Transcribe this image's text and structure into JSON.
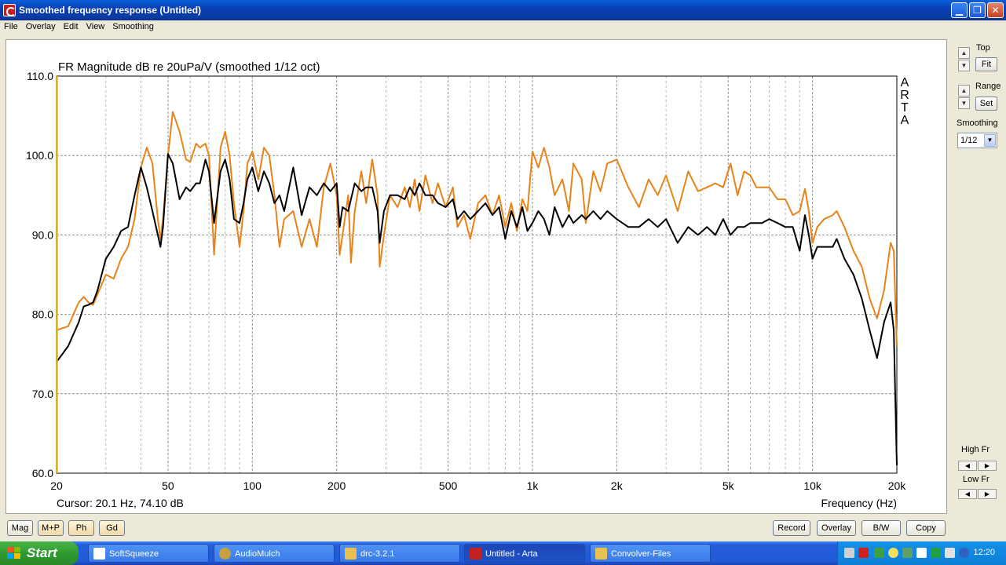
{
  "window": {
    "title": "Smoothed frequency response (Untitled)",
    "min_label": "▁",
    "max_label": "❐",
    "close_label": "✕"
  },
  "menu": [
    "File",
    "Overlay",
    "Edit",
    "View",
    "Smoothing"
  ],
  "side_panel": {
    "top_label": "Top",
    "fit_button": "Fit",
    "range_label": "Range",
    "set_button": "Set",
    "smoothing_label": "Smoothing",
    "smoothing_value": "1/12",
    "high_fr_label": "High Fr",
    "low_fr_label": "Low Fr"
  },
  "bottom_buttons": {
    "mag": "Mag",
    "mp": "M+P",
    "ph": "Ph",
    "gd": "Gd",
    "record": "Record",
    "overlay": "Overlay",
    "bw": "B/W",
    "copy": "Copy"
  },
  "taskbar": {
    "start": "Start",
    "tasks": [
      {
        "label": "SoftSqueeze",
        "color": "#FFFFFF"
      },
      {
        "label": "AudioMulch",
        "color": "#C8A040"
      },
      {
        "label": "drc-3.2.1",
        "color": "#E8C050"
      },
      {
        "label": "Untitled - Arta",
        "color": "#C42020"
      },
      {
        "label": "Convolver-Files",
        "color": "#E8C050"
      }
    ],
    "clock": "12:20"
  },
  "chart_data": {
    "type": "line",
    "title": "FR Magnitude dB re 20uPa/V (smoothed 1/12 oct)",
    "watermark": [
      "A",
      "R",
      "T",
      "A"
    ],
    "xlabel": "Frequency (Hz)",
    "ylabel": "",
    "xscale": "log",
    "xlim": [
      20,
      20000
    ],
    "ylim": [
      60,
      110
    ],
    "x_ticks": [
      "20",
      "50",
      "100",
      "200",
      "500",
      "1k",
      "2k",
      "5k",
      "10k",
      "20k"
    ],
    "x_tick_values": [
      20,
      50,
      100,
      200,
      500,
      1000,
      2000,
      5000,
      10000,
      20000
    ],
    "y_ticks": [
      "110.0",
      "100.0",
      "90.0",
      "80.0",
      "70.0",
      "60.0"
    ],
    "y_tick_values": [
      110,
      100,
      90,
      80,
      70,
      60
    ],
    "grid": true,
    "cursor_text": "Cursor: 20.1 Hz, 74.10 dB",
    "cursor_x": 20.1,
    "series": [
      {
        "color": "#E8821A",
        "points": [
          [
            20,
            78
          ],
          [
            22,
            78.5
          ],
          [
            24,
            81.5
          ],
          [
            25,
            82.2
          ],
          [
            26,
            81.5
          ],
          [
            27,
            81.2
          ],
          [
            28,
            82.5
          ],
          [
            30,
            85
          ],
          [
            32,
            84.5
          ],
          [
            34,
            87
          ],
          [
            36,
            88.5
          ],
          [
            38,
            92
          ],
          [
            40,
            98.5
          ],
          [
            42,
            101
          ],
          [
            44,
            99
          ],
          [
            46,
            92
          ],
          [
            47,
            89.5
          ],
          [
            48,
            92
          ],
          [
            50,
            100
          ],
          [
            52,
            105.5
          ],
          [
            55,
            103
          ],
          [
            58,
            99.5
          ],
          [
            60,
            99.2
          ],
          [
            63,
            101.5
          ],
          [
            65,
            101
          ],
          [
            68,
            101.5
          ],
          [
            70,
            100
          ],
          [
            73,
            87.5
          ],
          [
            77,
            101
          ],
          [
            80,
            103
          ],
          [
            83,
            100
          ],
          [
            86,
            94
          ],
          [
            90,
            88.5
          ],
          [
            93,
            93
          ],
          [
            96,
            99
          ],
          [
            100,
            100.5
          ],
          [
            105,
            97
          ],
          [
            110,
            101
          ],
          [
            115,
            100
          ],
          [
            120,
            95
          ],
          [
            125,
            88.5
          ],
          [
            130,
            92
          ],
          [
            140,
            93
          ],
          [
            150,
            88.5
          ],
          [
            160,
            92
          ],
          [
            170,
            88.5
          ],
          [
            180,
            96
          ],
          [
            190,
            99
          ],
          [
            200,
            95
          ],
          [
            205,
            87.5
          ],
          [
            210,
            90
          ],
          [
            220,
            95
          ],
          [
            225,
            86.5
          ],
          [
            232,
            93
          ],
          [
            245,
            98
          ],
          [
            255,
            94
          ],
          [
            268,
            99.5
          ],
          [
            280,
            95
          ],
          [
            285,
            86
          ],
          [
            295,
            90
          ],
          [
            310,
            95
          ],
          [
            330,
            93.5
          ],
          [
            350,
            96
          ],
          [
            365,
            93.5
          ],
          [
            380,
            97
          ],
          [
            395,
            93
          ],
          [
            415,
            97.5
          ],
          [
            440,
            94
          ],
          [
            460,
            96.5
          ],
          [
            490,
            93.5
          ],
          [
            520,
            96
          ],
          [
            540,
            91
          ],
          [
            570,
            92.5
          ],
          [
            600,
            89.5
          ],
          [
            640,
            94
          ],
          [
            680,
            95
          ],
          [
            720,
            92.5
          ],
          [
            760,
            95
          ],
          [
            800,
            91
          ],
          [
            840,
            94
          ],
          [
            880,
            90.5
          ],
          [
            920,
            94.5
          ],
          [
            960,
            93
          ],
          [
            1000,
            100.5
          ],
          [
            1050,
            98.5
          ],
          [
            1100,
            101
          ],
          [
            1150,
            98.5
          ],
          [
            1200,
            95
          ],
          [
            1280,
            97
          ],
          [
            1350,
            93
          ],
          [
            1400,
            99
          ],
          [
            1500,
            97
          ],
          [
            1550,
            91.5
          ],
          [
            1650,
            98
          ],
          [
            1750,
            95.5
          ],
          [
            1850,
            99
          ],
          [
            2000,
            99.5
          ],
          [
            2200,
            96
          ],
          [
            2400,
            93.5
          ],
          [
            2600,
            97
          ],
          [
            2800,
            95
          ],
          [
            3000,
            97.5
          ],
          [
            3300,
            93
          ],
          [
            3600,
            98
          ],
          [
            3900,
            95.5
          ],
          [
            4200,
            96
          ],
          [
            4500,
            96.5
          ],
          [
            4800,
            96
          ],
          [
            5100,
            99
          ],
          [
            5400,
            95
          ],
          [
            5700,
            98
          ],
          [
            6000,
            97.5
          ],
          [
            6300,
            96
          ],
          [
            6600,
            96
          ],
          [
            7000,
            96
          ],
          [
            7500,
            94.5
          ],
          [
            8000,
            94.5
          ],
          [
            8500,
            92.5
          ],
          [
            9000,
            93
          ],
          [
            9400,
            95.8
          ],
          [
            9700,
            93
          ],
          [
            10000,
            89
          ],
          [
            10400,
            91
          ],
          [
            11000,
            92
          ],
          [
            11800,
            92.5
          ],
          [
            12200,
            93
          ],
          [
            13000,
            91
          ],
          [
            14000,
            88
          ],
          [
            15000,
            86
          ],
          [
            16000,
            82
          ],
          [
            17000,
            79.5
          ],
          [
            18000,
            83
          ],
          [
            19000,
            89
          ],
          [
            19500,
            88
          ],
          [
            20000,
            76
          ]
        ]
      },
      {
        "color": "#000000",
        "points": [
          [
            20,
            74
          ],
          [
            22,
            76
          ],
          [
            24,
            79
          ],
          [
            25,
            81
          ],
          [
            26,
            81.2
          ],
          [
            27,
            81.5
          ],
          [
            28,
            83
          ],
          [
            30,
            87
          ],
          [
            32,
            88.5
          ],
          [
            34,
            90.5
          ],
          [
            36,
            91
          ],
          [
            38,
            95
          ],
          [
            40,
            98.5
          ],
          [
            42,
            96
          ],
          [
            44,
            93
          ],
          [
            46,
            90
          ],
          [
            47,
            88.5
          ],
          [
            48,
            91
          ],
          [
            50,
            100.2
          ],
          [
            52,
            99
          ],
          [
            55,
            94.5
          ],
          [
            58,
            96
          ],
          [
            60,
            95.5
          ],
          [
            63,
            96.5
          ],
          [
            65,
            96.5
          ],
          [
            68,
            99.5
          ],
          [
            70,
            98
          ],
          [
            73,
            91.5
          ],
          [
            77,
            98
          ],
          [
            80,
            99.5
          ],
          [
            83,
            97
          ],
          [
            86,
            92
          ],
          [
            90,
            91.5
          ],
          [
            93,
            94
          ],
          [
            96,
            97
          ],
          [
            100,
            98.5
          ],
          [
            105,
            95.5
          ],
          [
            110,
            98
          ],
          [
            115,
            96.5
          ],
          [
            120,
            94
          ],
          [
            125,
            95
          ],
          [
            130,
            93
          ],
          [
            140,
            98.5
          ],
          [
            150,
            92.5
          ],
          [
            160,
            96
          ],
          [
            170,
            95
          ],
          [
            180,
            96.5
          ],
          [
            190,
            95.5
          ],
          [
            200,
            96.5
          ],
          [
            205,
            91
          ],
          [
            210,
            93.5
          ],
          [
            220,
            93
          ],
          [
            232,
            96.5
          ],
          [
            245,
            95.5
          ],
          [
            255,
            96
          ],
          [
            268,
            96
          ],
          [
            280,
            93
          ],
          [
            285,
            89
          ],
          [
            295,
            93
          ],
          [
            310,
            95
          ],
          [
            330,
            95
          ],
          [
            350,
            94.5
          ],
          [
            365,
            96
          ],
          [
            380,
            95
          ],
          [
            395,
            96.5
          ],
          [
            415,
            95
          ],
          [
            440,
            95
          ],
          [
            460,
            94
          ],
          [
            490,
            93.5
          ],
          [
            520,
            94.5
          ],
          [
            540,
            92
          ],
          [
            570,
            93
          ],
          [
            600,
            92
          ],
          [
            640,
            93
          ],
          [
            680,
            94
          ],
          [
            720,
            92.5
          ],
          [
            760,
            93.5
          ],
          [
            800,
            89.5
          ],
          [
            840,
            93
          ],
          [
            880,
            91
          ],
          [
            920,
            93.5
          ],
          [
            960,
            90.5
          ],
          [
            1000,
            91.5
          ],
          [
            1050,
            93
          ],
          [
            1100,
            92
          ],
          [
            1150,
            90
          ],
          [
            1200,
            93.5
          ],
          [
            1280,
            91
          ],
          [
            1350,
            92.5
          ],
          [
            1400,
            91.5
          ],
          [
            1500,
            92.5
          ],
          [
            1550,
            92
          ],
          [
            1650,
            93
          ],
          [
            1750,
            92
          ],
          [
            1850,
            93
          ],
          [
            2000,
            92
          ],
          [
            2200,
            91
          ],
          [
            2400,
            91
          ],
          [
            2600,
            92
          ],
          [
            2800,
            91
          ],
          [
            3000,
            92
          ],
          [
            3300,
            89
          ],
          [
            3600,
            91
          ],
          [
            3900,
            90
          ],
          [
            4200,
            91
          ],
          [
            4500,
            90
          ],
          [
            4800,
            92
          ],
          [
            5100,
            90
          ],
          [
            5400,
            91
          ],
          [
            5700,
            91
          ],
          [
            6000,
            91.5
          ],
          [
            6300,
            91.5
          ],
          [
            6600,
            91.5
          ],
          [
            7000,
            92
          ],
          [
            7500,
            91.5
          ],
          [
            8000,
            91
          ],
          [
            8500,
            91
          ],
          [
            9000,
            88
          ],
          [
            9400,
            92.5
          ],
          [
            9700,
            90
          ],
          [
            10000,
            87
          ],
          [
            10400,
            88.5
          ],
          [
            11000,
            88.5
          ],
          [
            11800,
            88.5
          ],
          [
            12200,
            89.5
          ],
          [
            13000,
            87
          ],
          [
            14000,
            85
          ],
          [
            15000,
            82
          ],
          [
            16000,
            78
          ],
          [
            17000,
            74.5
          ],
          [
            18000,
            79
          ],
          [
            19000,
            81.5
          ],
          [
            19500,
            78
          ],
          [
            20000,
            61
          ]
        ]
      }
    ]
  }
}
